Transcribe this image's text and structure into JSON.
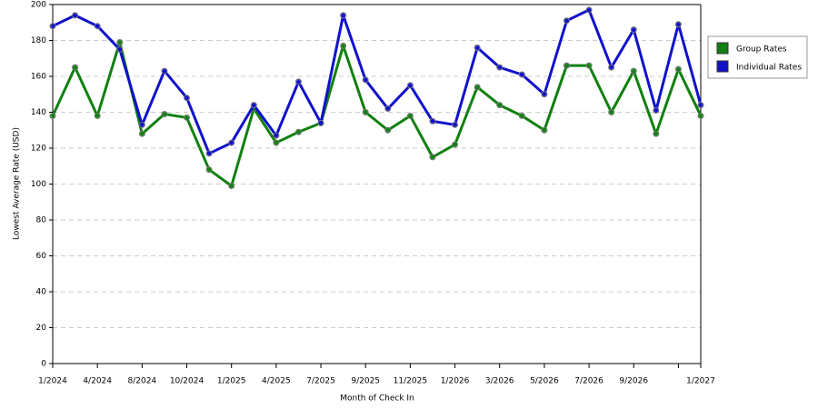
{
  "chart_data": {
    "type": "line",
    "x_label": "Month of Check In",
    "y_label": "Lowest Average Rate (USD)",
    "categories": [
      "1/2024",
      null,
      "4/2024",
      null,
      "8/2024",
      null,
      "10/2024",
      null,
      "1/2025",
      null,
      "4/2025",
      null,
      "7/2025",
      null,
      "9/2025",
      null,
      "11/2025",
      null,
      "1/2026",
      null,
      "3/2026",
      null,
      "5/2026",
      null,
      "7/2026",
      null,
      "9/2026",
      null,
      null,
      "1/2027"
    ],
    "series": [
      {
        "name": "Group Rates",
        "color": "#118011",
        "values": [
          138,
          165,
          138,
          179,
          128,
          139,
          137,
          108,
          99,
          142,
          123,
          129,
          134,
          177,
          140,
          130,
          138,
          115,
          122,
          154,
          144,
          138,
          130,
          166,
          166,
          140,
          163,
          128,
          164,
          138
        ]
      },
      {
        "name": "Individual Rates",
        "color": "#1111cc",
        "values": [
          188,
          194,
          188,
          175,
          133,
          163,
          148,
          117,
          123,
          144,
          127,
          157,
          134,
          194,
          158,
          142,
          155,
          135,
          133,
          176,
          165,
          161,
          150,
          191,
          197,
          165,
          186,
          141,
          189,
          144
        ]
      }
    ],
    "ylim": [
      0,
      200
    ],
    "yticks": [
      0,
      20,
      40,
      60,
      80,
      100,
      120,
      140,
      160,
      180,
      200
    ],
    "grid": true,
    "legend": "right"
  }
}
